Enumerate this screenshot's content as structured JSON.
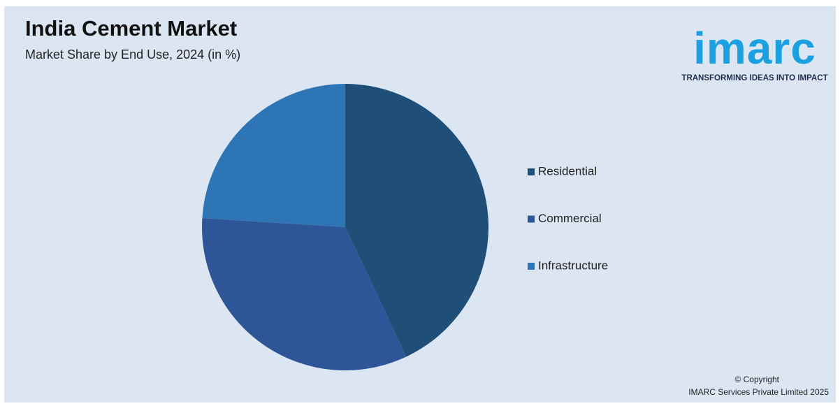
{
  "chart_data": {
    "type": "pie",
    "title": "India Cement Market",
    "subtitle": "Market Share by End Use, 2024 (in %)",
    "categories": [
      "Residential",
      "Commercial",
      "Infrastructure"
    ],
    "values": [
      43,
      33,
      24
    ],
    "colors": [
      "#1f4e79",
      "#2e5597",
      "#2e75b6"
    ],
    "legend": "right"
  },
  "logo": {
    "name": "imarc",
    "tagline": "TRANSFORMING IDEAS INTO IMPACT"
  },
  "copyright": [
    "© Copyright",
    "IMARC Services Private Limited 2025"
  ]
}
